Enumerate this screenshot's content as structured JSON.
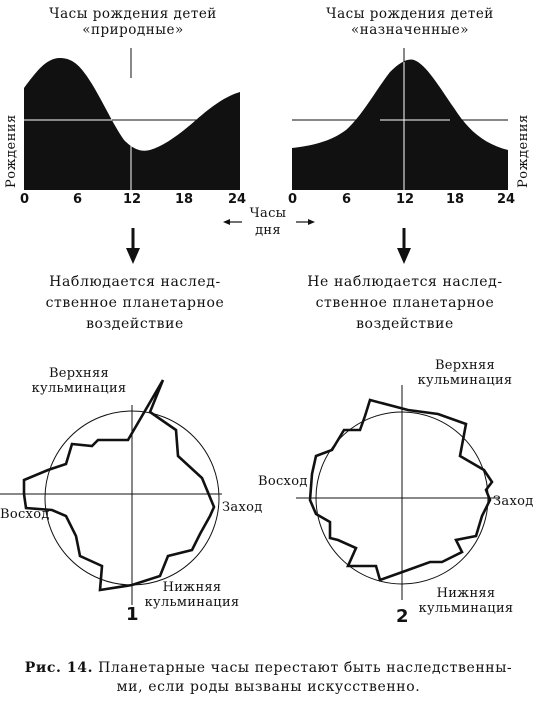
{
  "left_panel": {
    "title_line1": "Часы рождения детей",
    "title_line2": "«природные»",
    "y_label": "Рождения",
    "ticks": [
      "0",
      "6",
      "12",
      "18",
      "24"
    ],
    "observation_line1": "Наблюдается наслед-",
    "observation_line2": "ственное планетарное",
    "observation_line3": "воздействие"
  },
  "right_panel": {
    "title_line1": "Часы рождения детей",
    "title_line2": "«назначенные»",
    "y_label": "Рождения",
    "ticks": [
      "0",
      "6",
      "12",
      "18",
      "24"
    ],
    "observation_line1": "Не наблюдается наслед-",
    "observation_line2": "ственное планетарное",
    "observation_line3": "воздействие"
  },
  "x_axis_label_line1": "Часы",
  "x_axis_label_line2": "дня",
  "polar_left": {
    "number": "1",
    "top_label_line1": "Верхняя",
    "top_label_line2": "кульминация",
    "bottom_label_line1": "Нижняя",
    "bottom_label_line2": "кульминация",
    "left_label": "Восход",
    "right_label": "Заход"
  },
  "polar_right": {
    "number": "2",
    "top_label_line1": "Верхняя",
    "top_label_line2": "кульминация",
    "bottom_label_line1": "Нижняя",
    "bottom_label_line2": "кульминация",
    "left_label": "Восход",
    "right_label": "Заход"
  },
  "caption": {
    "prefix": "Рис. 14.",
    "line1": "Планетарные часы перестают быть наследственны-",
    "line2": "ми, если роды вызваны искусственно."
  },
  "colors": {
    "ink": "#111111",
    "paper": "#ffffff"
  }
}
